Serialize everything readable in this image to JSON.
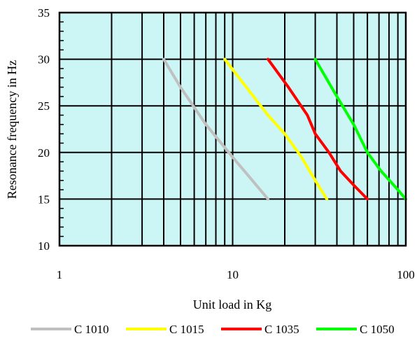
{
  "chart_data": {
    "type": "line",
    "title": "",
    "xlabel": "Unit load in Kg",
    "ylabel": "Resonance frequency in Hz",
    "x_scale": "log",
    "xlim": [
      1,
      100
    ],
    "ylim": [
      10,
      35
    ],
    "x_ticks": [
      {
        "value": 1,
        "label": "1"
      },
      {
        "value": 10,
        "label": "10"
      },
      {
        "value": 100,
        "label": "100"
      }
    ],
    "y_ticks": [
      {
        "value": 10,
        "label": "10"
      },
      {
        "value": 15,
        "label": "15"
      },
      {
        "value": 20,
        "label": "20"
      },
      {
        "value": 25,
        "label": "25"
      },
      {
        "value": 30,
        "label": "30"
      },
      {
        "value": 35,
        "label": "35"
      }
    ],
    "grid": true,
    "plot_background": "#ccf5f5",
    "legend_position": "bottom",
    "series": [
      {
        "name": "C 1010",
        "color": "#c0c0c0",
        "points": [
          [
            4,
            30
          ],
          [
            5,
            27
          ],
          [
            7,
            23
          ],
          [
            10,
            19.5
          ],
          [
            13,
            17
          ],
          [
            16,
            15
          ]
        ]
      },
      {
        "name": "C 1015",
        "color": "#ffff00",
        "points": [
          [
            9,
            30
          ],
          [
            12,
            27
          ],
          [
            16,
            24
          ],
          [
            20,
            22
          ],
          [
            25,
            19.5
          ],
          [
            30,
            17
          ],
          [
            35,
            15
          ]
        ]
      },
      {
        "name": "C 1035",
        "color": "#ff0000",
        "points": [
          [
            16,
            30
          ],
          [
            21,
            27
          ],
          [
            27,
            24
          ],
          [
            30,
            22
          ],
          [
            36,
            20
          ],
          [
            42,
            18
          ],
          [
            50,
            16.5
          ],
          [
            60,
            15
          ]
        ]
      },
      {
        "name": "C 1050",
        "color": "#00ff00",
        "points": [
          [
            30,
            30
          ],
          [
            40,
            26
          ],
          [
            50,
            23
          ],
          [
            60,
            20
          ],
          [
            72,
            18
          ],
          [
            88,
            16.2
          ],
          [
            100,
            15
          ]
        ]
      }
    ]
  }
}
